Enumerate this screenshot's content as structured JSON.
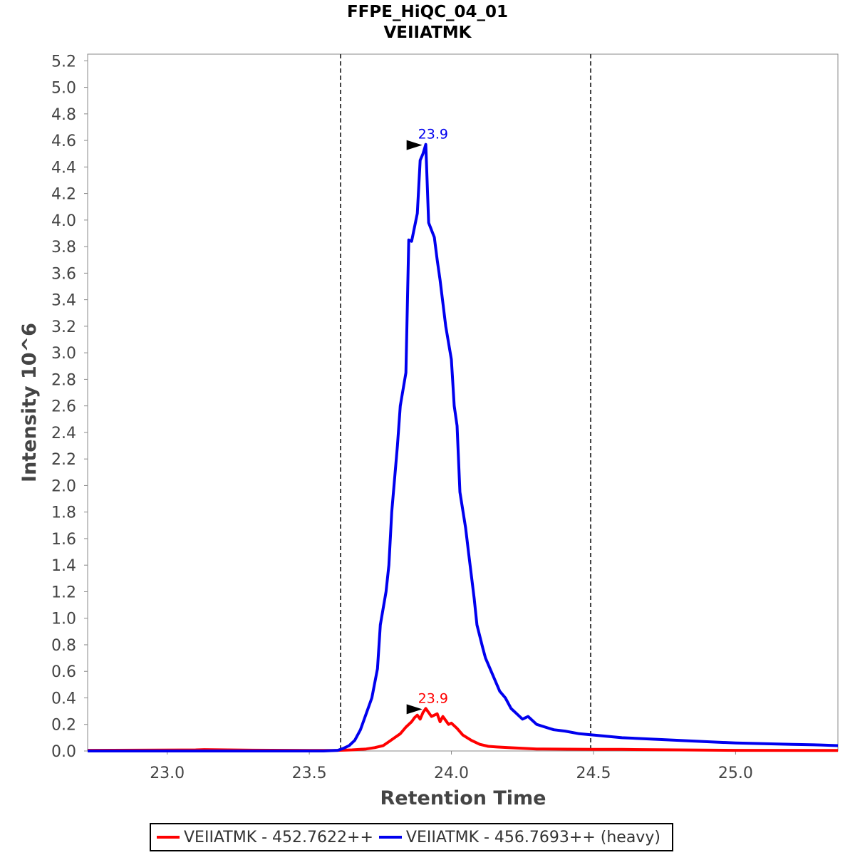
{
  "chart_data": {
    "type": "line",
    "title": "FFPE_HiQC_04_01",
    "subtitle": "VEIIATMK",
    "xlabel": "Retention Time",
    "ylabel": "Intensity 10^6",
    "xlim": [
      22.72,
      25.36
    ],
    "ylim": [
      0.0,
      5.25
    ],
    "x_ticks": [
      "23.0",
      "23.5",
      "24.0",
      "24.5",
      "25.0"
    ],
    "y_ticks": [
      "0.0",
      "0.2",
      "0.4",
      "0.6",
      "0.8",
      "1.0",
      "1.2",
      "1.4",
      "1.6",
      "1.8",
      "2.0",
      "2.2",
      "2.4",
      "2.6",
      "2.8",
      "3.0",
      "3.2",
      "3.4",
      "3.6",
      "3.8",
      "4.0",
      "4.2",
      "4.4",
      "4.6",
      "4.8",
      "5.0",
      "5.2"
    ],
    "boundaries": [
      23.61,
      24.49
    ],
    "series": [
      {
        "name": "VEIIATMK - 452.7622++",
        "color": "#ff0000",
        "points": [
          [
            22.72,
            0.005
          ],
          [
            23.1,
            0.008
          ],
          [
            23.13,
            0.01
          ],
          [
            23.3,
            0.006
          ],
          [
            23.5,
            0.004
          ],
          [
            23.6,
            0.005
          ],
          [
            23.65,
            0.008
          ],
          [
            23.7,
            0.015
          ],
          [
            23.73,
            0.025
          ],
          [
            23.76,
            0.04
          ],
          [
            23.78,
            0.07
          ],
          [
            23.8,
            0.1
          ],
          [
            23.82,
            0.13
          ],
          [
            23.84,
            0.18
          ],
          [
            23.86,
            0.22
          ],
          [
            23.87,
            0.25
          ],
          [
            23.88,
            0.27
          ],
          [
            23.89,
            0.24
          ],
          [
            23.9,
            0.29
          ],
          [
            23.91,
            0.32
          ],
          [
            23.92,
            0.29
          ],
          [
            23.93,
            0.26
          ],
          [
            23.94,
            0.27
          ],
          [
            23.95,
            0.28
          ],
          [
            23.96,
            0.22
          ],
          [
            23.97,
            0.26
          ],
          [
            23.98,
            0.23
          ],
          [
            23.99,
            0.2
          ],
          [
            24.0,
            0.21
          ],
          [
            24.02,
            0.17
          ],
          [
            24.04,
            0.12
          ],
          [
            24.07,
            0.08
          ],
          [
            24.1,
            0.05
          ],
          [
            24.13,
            0.035
          ],
          [
            24.16,
            0.03
          ],
          [
            24.2,
            0.025
          ],
          [
            24.3,
            0.015
          ],
          [
            24.5,
            0.012
          ],
          [
            24.6,
            0.012
          ],
          [
            24.8,
            0.008
          ],
          [
            25.0,
            0.005
          ],
          [
            25.36,
            0.004
          ]
        ],
        "peak_label": "23.9",
        "peak": [
          23.91,
          0.32
        ]
      },
      {
        "name": "VEIIATMK - 456.7693++ (heavy)",
        "color": "#0000ee",
        "points": [
          [
            22.72,
            0.0
          ],
          [
            23.55,
            0.0
          ],
          [
            23.6,
            0.005
          ],
          [
            23.62,
            0.02
          ],
          [
            23.64,
            0.04
          ],
          [
            23.66,
            0.08
          ],
          [
            23.68,
            0.16
          ],
          [
            23.7,
            0.28
          ],
          [
            23.72,
            0.4
          ],
          [
            23.74,
            0.62
          ],
          [
            23.75,
            0.95
          ],
          [
            23.77,
            1.2
          ],
          [
            23.78,
            1.4
          ],
          [
            23.79,
            1.8
          ],
          [
            23.81,
            2.3
          ],
          [
            23.82,
            2.6
          ],
          [
            23.84,
            2.85
          ],
          [
            23.85,
            3.85
          ],
          [
            23.86,
            3.84
          ],
          [
            23.88,
            4.05
          ],
          [
            23.89,
            4.45
          ],
          [
            23.9,
            4.5
          ],
          [
            23.91,
            4.57
          ],
          [
            23.92,
            3.98
          ],
          [
            23.94,
            3.87
          ],
          [
            23.95,
            3.7
          ],
          [
            23.96,
            3.55
          ],
          [
            23.98,
            3.2
          ],
          [
            24.0,
            2.95
          ],
          [
            24.01,
            2.6
          ],
          [
            24.02,
            2.45
          ],
          [
            24.03,
            1.95
          ],
          [
            24.05,
            1.68
          ],
          [
            24.06,
            1.5
          ],
          [
            24.08,
            1.15
          ],
          [
            24.09,
            0.95
          ],
          [
            24.11,
            0.78
          ],
          [
            24.12,
            0.7
          ],
          [
            24.14,
            0.6
          ],
          [
            24.16,
            0.5
          ],
          [
            24.17,
            0.45
          ],
          [
            24.19,
            0.4
          ],
          [
            24.21,
            0.32
          ],
          [
            24.23,
            0.28
          ],
          [
            24.25,
            0.24
          ],
          [
            24.27,
            0.26
          ],
          [
            24.3,
            0.2
          ],
          [
            24.33,
            0.18
          ],
          [
            24.36,
            0.16
          ],
          [
            24.4,
            0.15
          ],
          [
            24.45,
            0.13
          ],
          [
            24.5,
            0.12
          ],
          [
            24.55,
            0.11
          ],
          [
            24.6,
            0.1
          ],
          [
            24.7,
            0.09
          ],
          [
            24.8,
            0.08
          ],
          [
            24.9,
            0.07
          ],
          [
            25.0,
            0.06
          ],
          [
            25.1,
            0.055
          ],
          [
            25.2,
            0.05
          ],
          [
            25.3,
            0.045
          ],
          [
            25.36,
            0.04
          ]
        ],
        "peak_label": "23.9",
        "peak": [
          23.91,
          4.57
        ]
      }
    ],
    "legend": "bottom-center"
  }
}
